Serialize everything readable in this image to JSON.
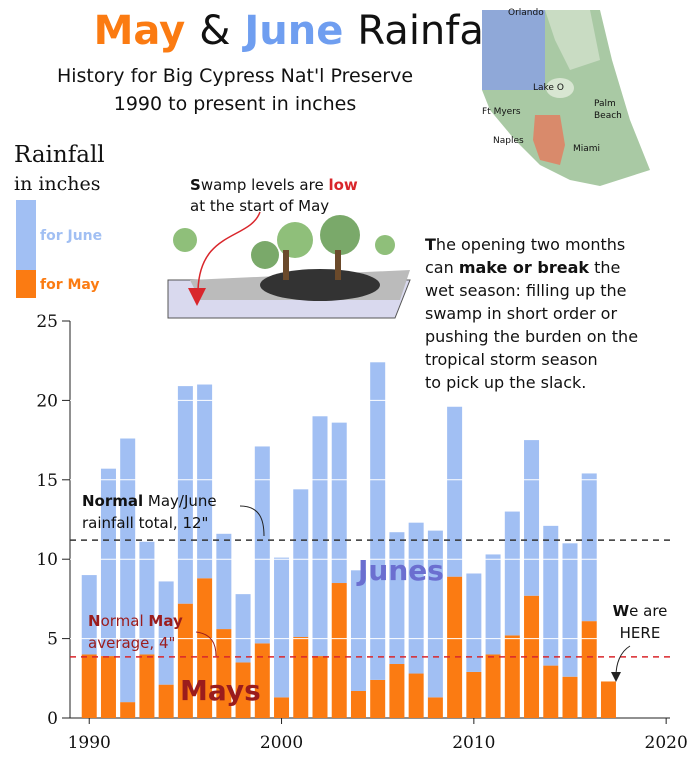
{
  "chart_data": {
    "type": "stacked_bar",
    "title": [
      "May",
      "&",
      "June",
      "Rainfall"
    ],
    "subtitle": [
      "History for Big Cypress Nat'l Preserve",
      "1990 to present in inches"
    ],
    "legend_title": [
      "Rainfall",
      "in inches"
    ],
    "x": [
      1990,
      1991,
      1992,
      1993,
      1994,
      1995,
      1996,
      1997,
      1998,
      1999,
      2000,
      2001,
      2002,
      2003,
      2004,
      2005,
      2006,
      2007,
      2008,
      2009,
      2010,
      2011,
      2012,
      2013,
      2014,
      2015,
      2016,
      2017
    ],
    "series": [
      {
        "name": "for May",
        "color": "#fb7b12",
        "values": [
          4.0,
          3.9,
          1.0,
          4.0,
          2.1,
          7.2,
          8.8,
          5.6,
          3.5,
          4.7,
          1.3,
          5.1,
          3.9,
          8.5,
          1.7,
          2.4,
          3.4,
          2.8,
          1.3,
          8.9,
          2.9,
          4.0,
          5.2,
          7.7,
          3.3,
          2.6,
          6.1,
          2.3
        ]
      },
      {
        "name": "for June",
        "color": "#a1bff3",
        "values": [
          5.0,
          11.8,
          16.6,
          7.1,
          6.5,
          13.7,
          12.2,
          6.0,
          4.3,
          12.4,
          8.8,
          9.3,
          15.1,
          10.1,
          7.6,
          20.0,
          8.3,
          9.5,
          10.5,
          10.7,
          6.2,
          6.3,
          7.8,
          9.8,
          8.8,
          8.4,
          9.3,
          null
        ]
      }
    ],
    "xlim": [
      1989,
      2020.2
    ],
    "xticks": [
      1990,
      2000,
      2010,
      2020
    ],
    "ylim": [
      0,
      25
    ],
    "yticks": [
      0,
      5,
      10,
      15,
      20,
      25
    ],
    "grid": true,
    "grid_color": "#ffffff",
    "reference_lines": [
      {
        "value": 11.2,
        "color": "#333333"
      },
      {
        "value": 3.85,
        "color": "#d9262b"
      }
    ],
    "annotations": {
      "total_note": [
        "Normal",
        " May/June",
        "rainfall total, 12\""
      ],
      "may_note": [
        "N",
        "ormal ",
        "May",
        "average, 4\""
      ],
      "junes": "Junes",
      "mays": "Mays",
      "here": [
        "W",
        "e are",
        "HERE"
      ]
    },
    "swamp_note": [
      "S",
      "wamp levels are ",
      "low",
      "at the start of May"
    ],
    "paragraph": [
      [
        "T",
        "he opening two months"
      ],
      [
        "can ",
        "make or break",
        " the"
      ],
      [
        "wet season: filling up the"
      ],
      [
        "swamp in short order or"
      ],
      [
        "pushing the burden on the"
      ],
      [
        "tropical storm season"
      ],
      [
        "to pick up the slack."
      ]
    ],
    "map_labels": [
      "Orlando",
      "Lake O",
      "Ft Myers",
      "Palm",
      "Beach",
      "Naples",
      "Miami"
    ]
  }
}
